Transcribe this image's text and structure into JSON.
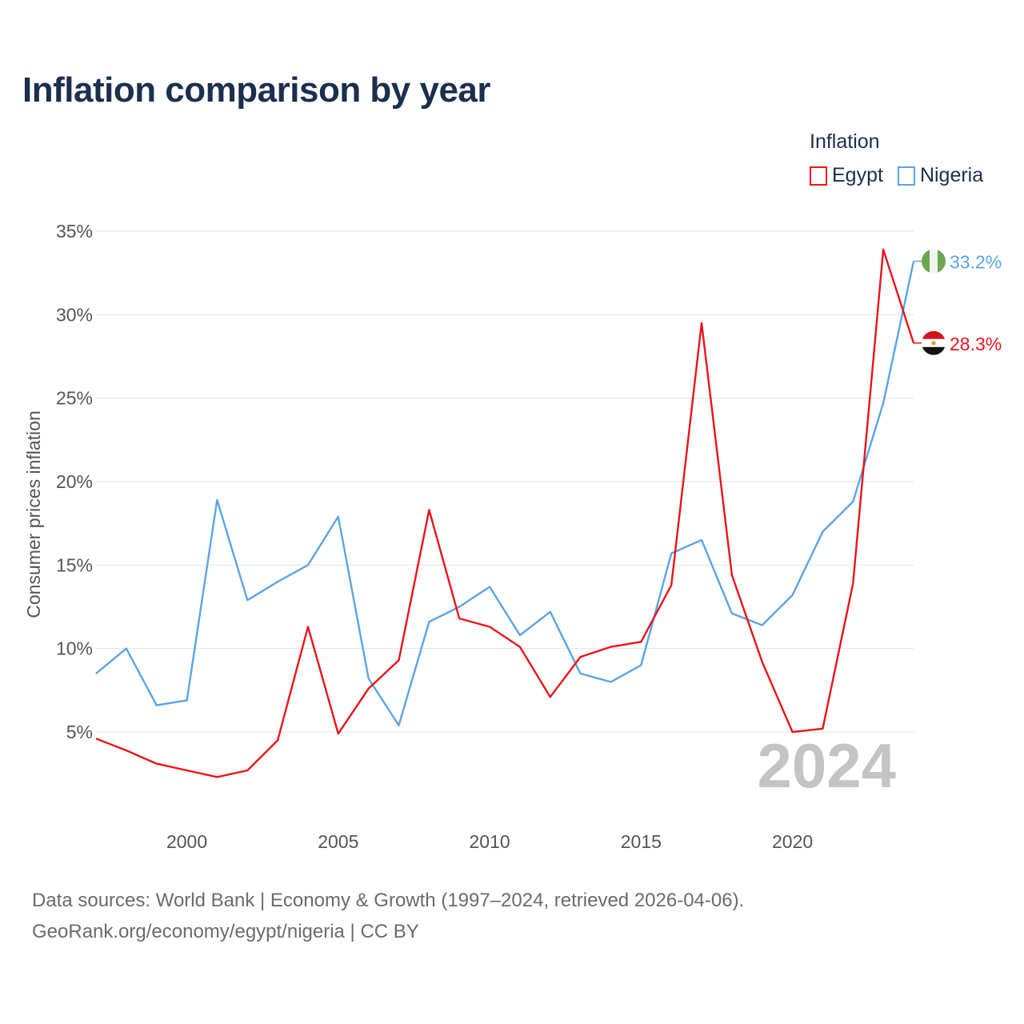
{
  "title": "Inflation comparison by year",
  "legend": {
    "title": "Inflation",
    "items": [
      {
        "label": "Egypt",
        "color": "#e8141b"
      },
      {
        "label": "Nigeria",
        "color": "#5ba4e5"
      }
    ]
  },
  "footer": {
    "line1": "Data sources: World Bank | Economy & Growth (1997–2024, retrieved 2026-04-06).",
    "line2": "GeoRank.org/economy/egypt/nigeria | CC BY"
  },
  "chart_data": {
    "type": "line",
    "title": "Inflation comparison by year",
    "ylabel": "Consumer prices inflation",
    "xlabel": "",
    "xlim": [
      1997,
      2024
    ],
    "ylim": [
      0,
      35
    ],
    "yticks": [
      5,
      10,
      15,
      20,
      25,
      30,
      35
    ],
    "ytick_labels": [
      "5%",
      "10%",
      "15%",
      "20%",
      "25%",
      "30%",
      "35%"
    ],
    "xticks": [
      2000,
      2005,
      2010,
      2015,
      2020
    ],
    "xtick_labels": [
      "2000",
      "2005",
      "2010",
      "2015",
      "2020"
    ],
    "grid": true,
    "year_watermark": "2024",
    "x": [
      1997,
      1998,
      1999,
      2000,
      2001,
      2002,
      2003,
      2004,
      2005,
      2006,
      2007,
      2008,
      2009,
      2010,
      2011,
      2012,
      2013,
      2014,
      2015,
      2016,
      2017,
      2018,
      2019,
      2020,
      2021,
      2022,
      2023,
      2024
    ],
    "series": [
      {
        "name": "Egypt",
        "color": "#e8141b",
        "end_label": "28.3%",
        "flag": "egypt-flag-icon",
        "values": [
          4.6,
          3.9,
          3.1,
          2.7,
          2.3,
          2.7,
          4.5,
          11.3,
          4.9,
          7.6,
          9.3,
          18.3,
          11.8,
          11.3,
          10.1,
          7.1,
          9.5,
          10.1,
          10.4,
          13.8,
          29.5,
          14.4,
          9.2,
          5.0,
          5.2,
          13.9,
          33.9,
          28.3
        ]
      },
      {
        "name": "Nigeria",
        "color": "#5ba4e5",
        "end_label": "33.2%",
        "flag": "nigeria-flag-icon",
        "values": [
          8.5,
          10.0,
          6.6,
          6.9,
          18.9,
          12.9,
          14.0,
          15.0,
          17.9,
          8.2,
          5.4,
          11.6,
          12.5,
          13.7,
          10.8,
          12.2,
          8.5,
          8.0,
          9.0,
          15.7,
          16.5,
          12.1,
          11.4,
          13.2,
          17.0,
          18.8,
          24.7,
          33.2
        ]
      }
    ]
  }
}
